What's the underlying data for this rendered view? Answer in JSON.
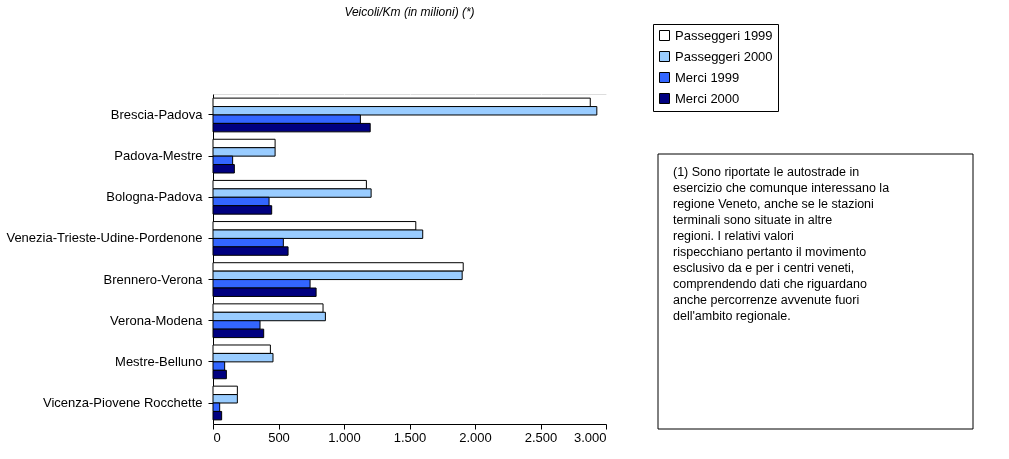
{
  "chart_data": {
    "type": "bar",
    "orientation": "horizontal",
    "title": "Veicoli/Km (in milioni) (*)",
    "categories": [
      "Brescia-Padova",
      "Padova-Mestre",
      "Bologna-Padova",
      "Venezia-Trieste-Udine-Pordenone",
      "Brennero-Verona",
      "Verona-Modena",
      "Mestre-Belluno",
      "Vicenza-Piovene Rocchette"
    ],
    "series": [
      {
        "name": "Passeggeri 1999",
        "color": "#ffffff",
        "values": [
          2880,
          474,
          1171,
          1548,
          1910,
          840,
          438,
          186
        ]
      },
      {
        "name": "Passeggeri 2000",
        "color": "#99ccff",
        "values": [
          2930,
          474,
          1207,
          1601,
          1902,
          858,
          458,
          186
        ]
      },
      {
        "name": "Merci 1999",
        "color": "#3366ff",
        "values": [
          1125,
          150,
          428,
          537,
          741,
          359,
          89,
          51
        ]
      },
      {
        "name": "Merci 2000",
        "color": "#000080",
        "values": [
          1200,
          163,
          448,
          573,
          787,
          387,
          102,
          66
        ]
      }
    ],
    "xlim": [
      0,
      3000
    ],
    "xticks": [
      0,
      500,
      {
        "value": 1000,
        "label": "1.000"
      },
      {
        "value": 1500,
        "label": "1.500"
      },
      {
        "value": 2000,
        "label": "2.000"
      },
      {
        "value": 2500,
        "label": "2.500"
      },
      {
        "value": 3000,
        "label": "3.000"
      }
    ],
    "grid": "x",
    "legend": "top right",
    "annotations": [
      "(1) Sono riportate le autostrade in esercizio che comunque interessano la regione Veneto, anche se le stazioni terminali sono situate in altre regioni. I relativi valori rispecchiano pertanto il movimento esclusivo da e per i centri veneti, comprendendo dati che riguardano anche percorrenze avvenute fuori dell'ambito regionale."
    ]
  }
}
